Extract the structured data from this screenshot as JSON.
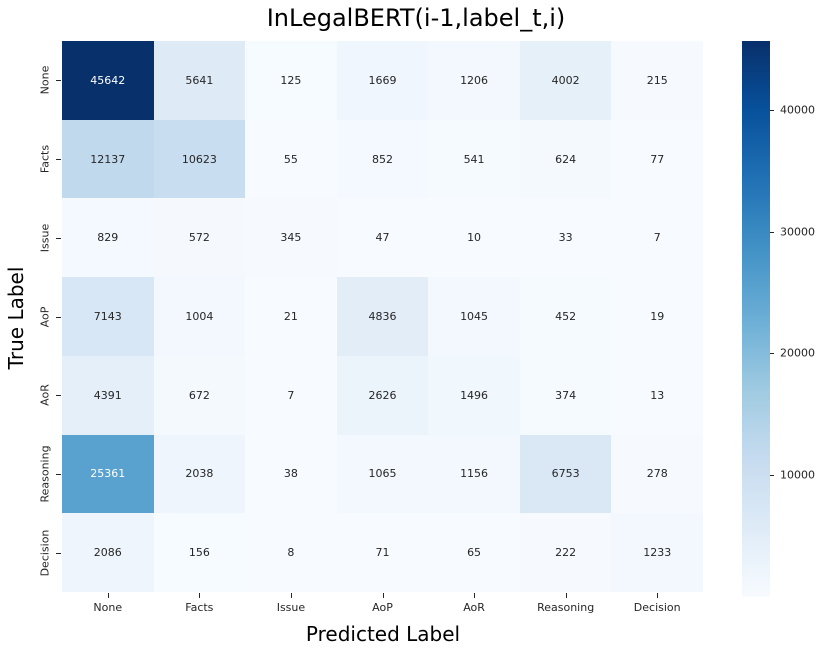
{
  "title": "InLegalBERT(i-1,label_t,i)",
  "xlabel": "Predicted Label",
  "ylabel": "True Label",
  "chart_data": {
    "type": "heatmap",
    "categories": [
      "None",
      "Facts",
      "Issue",
      "AoP",
      "AoR",
      "Reasoning",
      "Decision"
    ],
    "x_axis_categories": [
      "None",
      "Facts",
      "Issue",
      "AoP",
      "AoR",
      "Reasoning",
      "Decision"
    ],
    "y_axis_categories": [
      "None",
      "Facts",
      "Issue",
      "AoP",
      "AoR",
      "Reasoning",
      "Decision"
    ],
    "rows": [
      [
        45642,
        5641,
        125,
        1669,
        1206,
        4002,
        215
      ],
      [
        12137,
        10623,
        55,
        852,
        541,
        624,
        77
      ],
      [
        829,
        572,
        345,
        47,
        10,
        33,
        7
      ],
      [
        7143,
        1004,
        21,
        4836,
        1045,
        452,
        19
      ],
      [
        4391,
        672,
        7,
        2626,
        1496,
        374,
        13
      ],
      [
        25361,
        2038,
        38,
        1065,
        1156,
        6753,
        278
      ],
      [
        2086,
        156,
        8,
        71,
        65,
        222,
        1233
      ]
    ],
    "vmin": 7,
    "vmax": 45642,
    "colormap": "Blues",
    "colormap_stops": [
      "#f7fbff",
      "#deebf7",
      "#c6dbef",
      "#9ecae1",
      "#6baed6",
      "#4292c6",
      "#2171b5",
      "#08519c",
      "#08306b"
    ],
    "colorbar_ticks": [
      "10000",
      "20000",
      "30000",
      "40000"
    ],
    "colorbar_position": "right",
    "grid": false,
    "annotation_color_dark": "#262626",
    "annotation_color_light": "#ffffff"
  }
}
